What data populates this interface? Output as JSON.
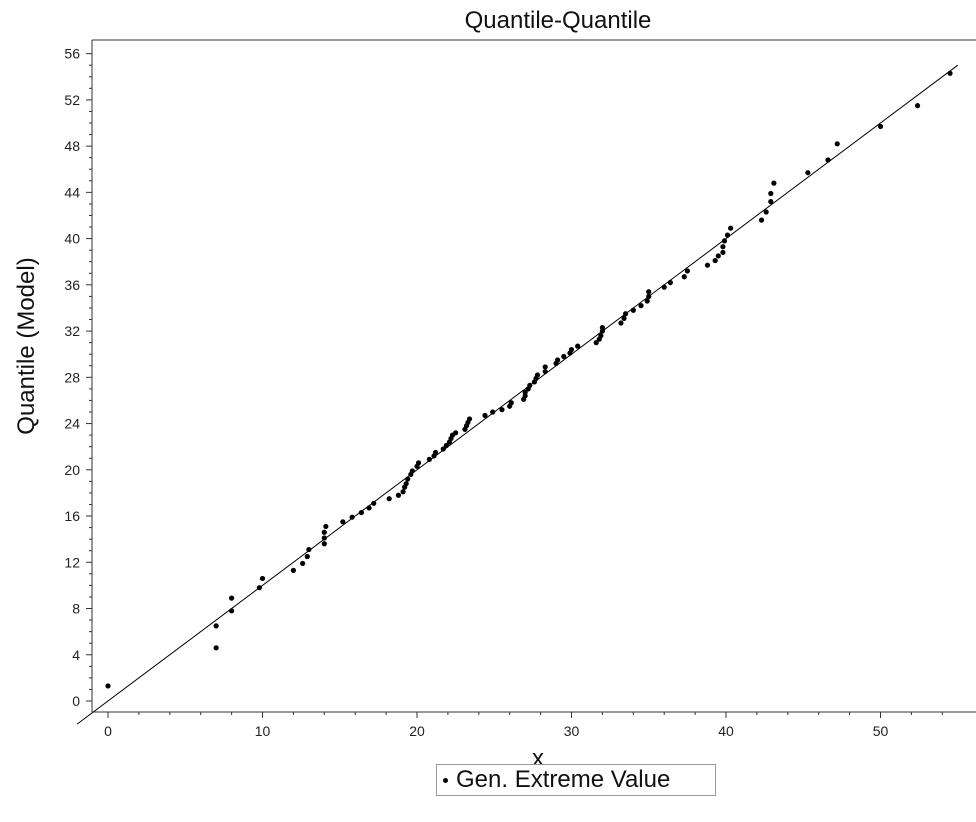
{
  "chart_data": {
    "type": "scatter",
    "title": "Quantile-Quantile",
    "xlabel": "x",
    "ylabel": "Quantile (Model)",
    "xlim": [
      -1,
      55
    ],
    "ylim": [
      -1,
      57
    ],
    "xticks": [
      0,
      10,
      20,
      30,
      40,
      50
    ],
    "yticks": [
      0,
      4,
      8,
      12,
      16,
      20,
      24,
      28,
      32,
      36,
      40,
      44,
      48,
      52,
      56
    ],
    "grid": false,
    "legend_position": "bottom-center",
    "reference_line": {
      "from": [
        -2,
        -2
      ],
      "to": [
        55,
        55
      ]
    },
    "series": [
      {
        "name": "Gen. Extreme Value",
        "color": "#000000",
        "points": [
          [
            0,
            1.3
          ],
          [
            7,
            4.6
          ],
          [
            7,
            6.5
          ],
          [
            8,
            7.8
          ],
          [
            8,
            8.9
          ],
          [
            9.8,
            9.8
          ],
          [
            10,
            10.6
          ],
          [
            12,
            11.3
          ],
          [
            12.6,
            11.9
          ],
          [
            12.9,
            12.5
          ],
          [
            13,
            13.1
          ],
          [
            14,
            13.6
          ],
          [
            14,
            14.1
          ],
          [
            14,
            14.6
          ],
          [
            14.1,
            15.1
          ],
          [
            15.2,
            15.5
          ],
          [
            15.8,
            15.9
          ],
          [
            16.4,
            16.3
          ],
          [
            16.9,
            16.7
          ],
          [
            17.2,
            17.1
          ],
          [
            18.2,
            17.5
          ],
          [
            18.8,
            17.8
          ],
          [
            19.1,
            18.1
          ],
          [
            19.2,
            18.5
          ],
          [
            19.3,
            18.8
          ],
          [
            19.4,
            19.2
          ],
          [
            19.6,
            19.6
          ],
          [
            19.7,
            19.9
          ],
          [
            20,
            20.3
          ],
          [
            20.1,
            20.6
          ],
          [
            20.8,
            20.9
          ],
          [
            21.1,
            21.2
          ],
          [
            21.2,
            21.5
          ],
          [
            21.7,
            21.8
          ],
          [
            21.9,
            22.1
          ],
          [
            22.1,
            22.4
          ],
          [
            22.2,
            22.7
          ],
          [
            22.3,
            23
          ],
          [
            22.5,
            23.2
          ],
          [
            23.1,
            23.5
          ],
          [
            23.2,
            23.8
          ],
          [
            23.3,
            24.1
          ],
          [
            23.4,
            24.4
          ],
          [
            24.4,
            24.7
          ],
          [
            24.9,
            25
          ],
          [
            25.5,
            25.2
          ],
          [
            26,
            25.5
          ],
          [
            26.1,
            25.8
          ],
          [
            26.9,
            26.1
          ],
          [
            27,
            26.4
          ],
          [
            27,
            26.7
          ],
          [
            27.2,
            27
          ],
          [
            27.3,
            27.3
          ],
          [
            27.6,
            27.6
          ],
          [
            27.7,
            27.9
          ],
          [
            27.8,
            28.2
          ],
          [
            28.3,
            28.5
          ],
          [
            28.3,
            28.9
          ],
          [
            29,
            29.2
          ],
          [
            29.1,
            29.5
          ],
          [
            29.5,
            29.8
          ],
          [
            29.9,
            30.1
          ],
          [
            30,
            30.4
          ],
          [
            30.4,
            30.7
          ],
          [
            31.6,
            31
          ],
          [
            31.8,
            31.3
          ],
          [
            31.9,
            31.6
          ],
          [
            32,
            32
          ],
          [
            32,
            32.3
          ],
          [
            33.2,
            32.7
          ],
          [
            33.4,
            33.1
          ],
          [
            33.5,
            33.5
          ],
          [
            34,
            33.8
          ],
          [
            34.5,
            34.2
          ],
          [
            34.9,
            34.6
          ],
          [
            35,
            35
          ],
          [
            35,
            35.4
          ],
          [
            36,
            35.8
          ],
          [
            36.4,
            36.2
          ],
          [
            37.3,
            36.7
          ],
          [
            37.5,
            37.2
          ],
          [
            38.8,
            37.7
          ],
          [
            39.3,
            38.1
          ],
          [
            39.5,
            38.5
          ],
          [
            39.8,
            38.8
          ],
          [
            39.8,
            39.3
          ],
          [
            39.9,
            39.8
          ],
          [
            40.1,
            40.3
          ],
          [
            40.3,
            40.9
          ],
          [
            42.3,
            41.6
          ],
          [
            42.6,
            42.3
          ],
          [
            42.9,
            43.2
          ],
          [
            42.9,
            43.9
          ],
          [
            43.1,
            44.8
          ],
          [
            45.3,
            45.7
          ],
          [
            46.6,
            46.8
          ],
          [
            47.2,
            48.2
          ],
          [
            50,
            49.7
          ],
          [
            52.4,
            51.5
          ],
          [
            54.5,
            54.3
          ]
        ]
      }
    ]
  }
}
